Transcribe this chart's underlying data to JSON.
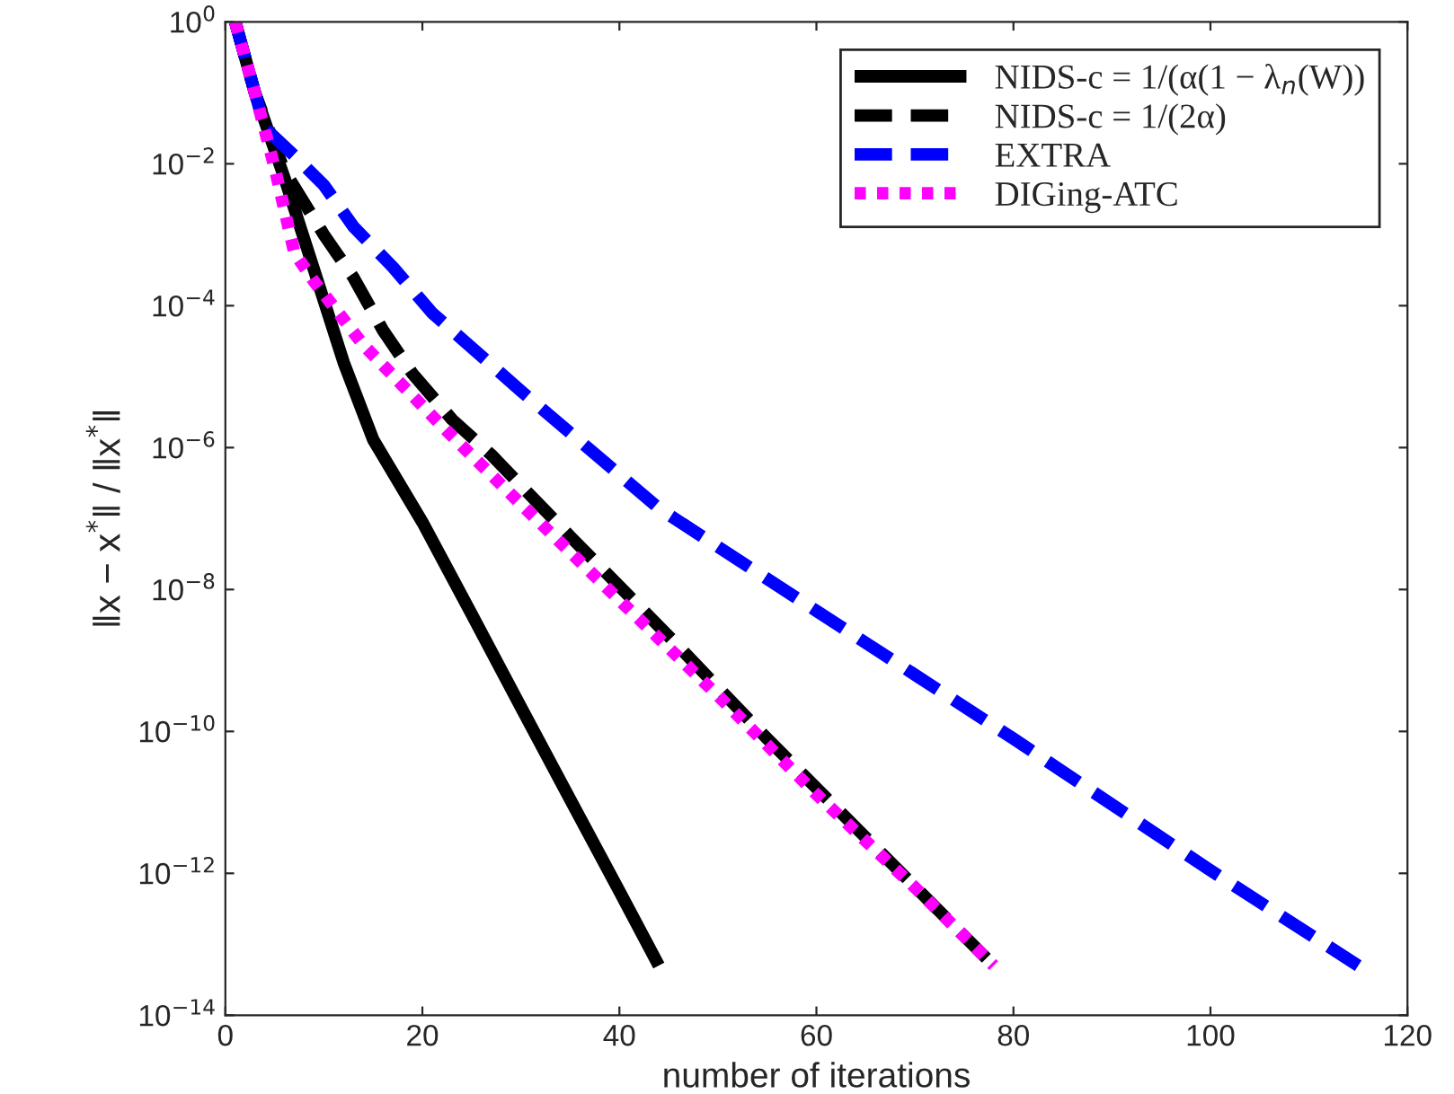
{
  "chart_data": {
    "type": "line",
    "xlabel": "number of iterations",
    "ylabel": "‖x − x$^{*}$‖ / ‖x$^{*}$‖",
    "log": "y",
    "xlim": [
      0,
      120
    ],
    "xticks": [
      0,
      20,
      40,
      60,
      80,
      100,
      120
    ],
    "ylim": [
      1e-14,
      1
    ],
    "yticks": [
      {
        "value": 1e-14,
        "label": "10$^{−14}$"
      },
      {
        "value": 1e-12,
        "label": "10$^{−12}$"
      },
      {
        "value": 1e-10,
        "label": "10$^{−10}$"
      },
      {
        "value": 1e-08,
        "label": "10$^{−8}$"
      },
      {
        "value": 1e-06,
        "label": "10$^{−6}$"
      },
      {
        "value": 0.0001,
        "label": "10$^{−4}$"
      },
      {
        "value": 0.01,
        "label": "10$^{−2}$"
      },
      {
        "value": 1,
        "label": "10$^{0}$"
      }
    ],
    "grid": false,
    "legend": "top right",
    "series": [
      {
        "name": "NIDS-c = 1/(α(1 − λ$_{n}$(W))",
        "color": "#000000",
        "line_style": "solid",
        "x": [
          1,
          3,
          6,
          9,
          12,
          15,
          20,
          25,
          30,
          35,
          40,
          44
        ],
        "values": [
          1,
          0.1,
          0.0063,
          0.00032,
          1.6e-05,
          1.3e-06,
          8.9e-08,
          4.5e-09,
          2.2e-10,
          1.1e-11,
          5.6e-13,
          5e-14
        ]
      },
      {
        "name": "NIDS-c = 1/(2α)",
        "color": "#000000",
        "line_style": "dashed",
        "x": [
          1,
          3,
          6,
          10,
          13,
          16,
          19,
          23,
          27,
          35,
          45,
          55,
          65,
          78
        ],
        "values": [
          1,
          0.1,
          0.0079,
          0.001,
          0.00025,
          4.5e-05,
          1.1e-05,
          2.5e-06,
          7.9e-07,
          5.6e-08,
          2.2e-09,
          7.9e-11,
          3.2e-12,
          5e-14
        ]
      },
      {
        "name": "EXTRA",
        "color": "#0000ff",
        "line_style": "dashed",
        "x": [
          1,
          4,
          7,
          10,
          13,
          17,
          21,
          30,
          44,
          60,
          80,
          100,
          115
        ],
        "values": [
          1,
          0.032,
          0.013,
          0.005,
          0.0013,
          0.00035,
          7.9e-05,
          6.3e-06,
          1.4e-07,
          5e-09,
          7.9e-11,
          1.1e-12,
          5e-14
        ]
      },
      {
        "name": "DIGing-ATC",
        "color": "#ff00ff",
        "line_style": "dotted",
        "x": [
          1,
          3,
          5,
          7,
          9,
          14,
          22,
          30,
          40,
          50,
          60,
          70,
          78
        ],
        "values": [
          1,
          0.1,
          0.0089,
          0.00056,
          0.00022,
          2.8e-05,
          2e-06,
          1.6e-07,
          7.1e-09,
          3.2e-10,
          1.3e-11,
          6.3e-13,
          5e-14
        ]
      }
    ]
  }
}
